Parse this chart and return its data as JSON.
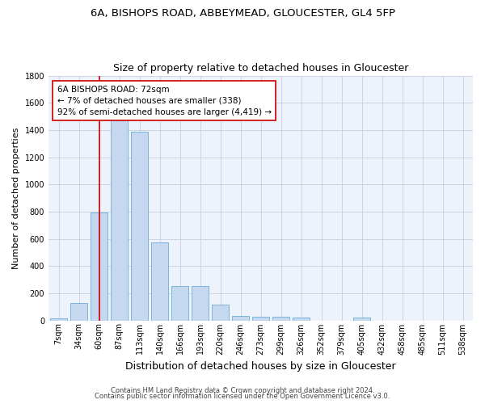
{
  "title1": "6A, BISHOPS ROAD, ABBEYMEAD, GLOUCESTER, GL4 5FP",
  "title2": "Size of property relative to detached houses in Gloucester",
  "xlabel": "Distribution of detached houses by size in Gloucester",
  "ylabel": "Number of detached properties",
  "bar_color": "#c5d8f0",
  "bar_edge_color": "#6aaed6",
  "categories": [
    "7sqm",
    "34sqm",
    "60sqm",
    "87sqm",
    "113sqm",
    "140sqm",
    "166sqm",
    "193sqm",
    "220sqm",
    "246sqm",
    "273sqm",
    "299sqm",
    "326sqm",
    "352sqm",
    "379sqm",
    "405sqm",
    "432sqm",
    "458sqm",
    "485sqm",
    "511sqm",
    "538sqm"
  ],
  "values": [
    15,
    130,
    795,
    1480,
    1385,
    575,
    250,
    250,
    115,
    35,
    28,
    28,
    20,
    0,
    0,
    20,
    0,
    0,
    0,
    0,
    0
  ],
  "ylim": [
    0,
    1800
  ],
  "yticks": [
    0,
    200,
    400,
    600,
    800,
    1000,
    1200,
    1400,
    1600,
    1800
  ],
  "vline_x": 2.0,
  "annotation_line1": "6A BISHOPS ROAD: 72sqm",
  "annotation_line2": "← 7% of detached houses are smaller (338)",
  "annotation_line3": "92% of semi-detached houses are larger (4,419) →",
  "annotation_box_color": "white",
  "annotation_border_color": "#cc0000",
  "vline_color": "#cc0000",
  "footer1": "Contains HM Land Registry data © Crown copyright and database right 2024.",
  "footer2": "Contains public sector information licensed under the Open Government Licence v3.0.",
  "bg_color": "#eef2fb",
  "grid_color": "#c8cfe0",
  "title1_fontsize": 9.5,
  "title2_fontsize": 9,
  "ylabel_fontsize": 8,
  "xlabel_fontsize": 9,
  "tick_fontsize": 7,
  "annotation_fontsize": 7.5,
  "footer_fontsize": 6
}
